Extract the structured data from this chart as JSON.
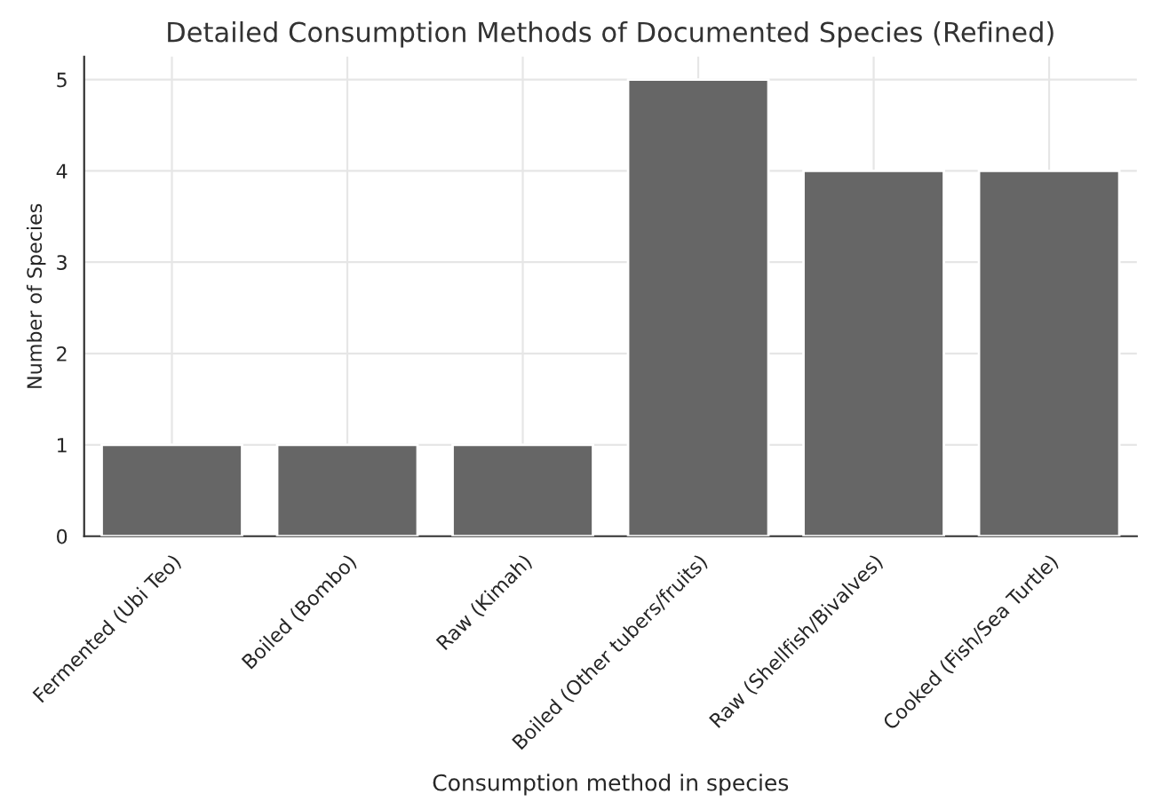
{
  "chart_data": {
    "type": "bar",
    "title": "Detailed Consumption Methods of Documented Species (Refined)",
    "xlabel": "Consumption method in species",
    "ylabel": "Number of Species",
    "categories": [
      "Fermented (Ubi Teo)",
      "Boiled (Bombo)",
      "Raw (Kimah)",
      "Boiled (Other tubers/fruits)",
      "Raw (Shellfish/Bivalves)",
      "Cooked (Fish/Sea Turtle)"
    ],
    "values": [
      1,
      1,
      1,
      5,
      4,
      4
    ],
    "color": "#666666",
    "ylim": [
      0,
      5.25
    ],
    "yticks": [
      0,
      1,
      2,
      3,
      4,
      5
    ],
    "grid": true
  }
}
